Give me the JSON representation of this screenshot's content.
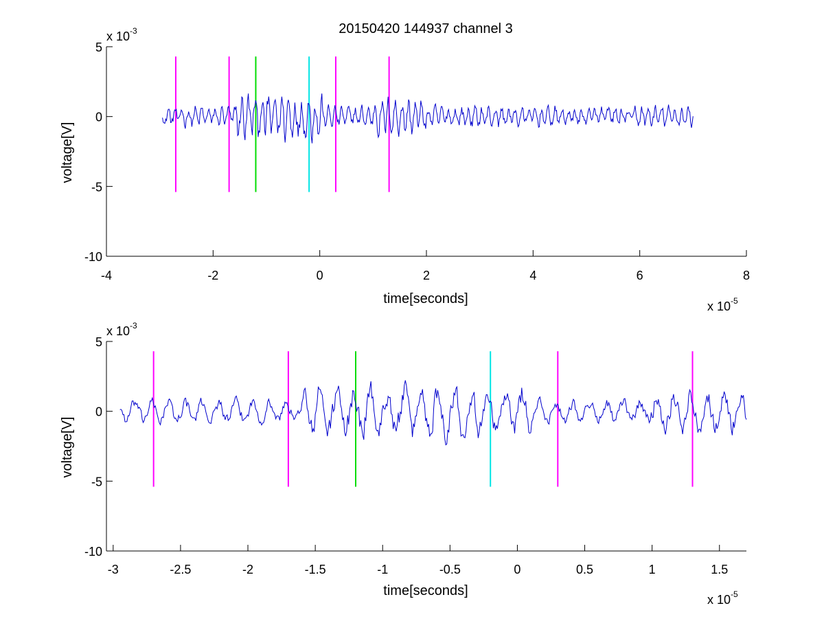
{
  "chart_data": [
    {
      "type": "line",
      "title": "20150420 144937 channel 3",
      "xlabel": "time[seconds]",
      "ylabel": "voltage[V]",
      "xlim": [
        -4e-05,
        8e-05
      ],
      "ylim": [
        -0.01,
        0.005
      ],
      "x_ticks": [
        -4e-05,
        -2e-05,
        0,
        2e-05,
        4e-05,
        6e-05,
        8e-05
      ],
      "x_tick_labels": [
        "-4",
        "-2",
        "0",
        "2",
        "4",
        "6",
        "8"
      ],
      "y_ticks": [
        -0.01,
        -0.005,
        0,
        0.005
      ],
      "y_tick_labels": [
        "-10",
        "-5",
        "0",
        "5"
      ],
      "x_exponent": {
        "base": "x 10",
        "power": "-5"
      },
      "y_exponent": {
        "base": "x 10",
        "power": "-3"
      },
      "grid": false,
      "signal": {
        "color": "#0000cc",
        "x_start": -2.95e-05,
        "x_end": 7e-05,
        "amplitude_v": 0.0022,
        "points": 650
      },
      "markers": [
        {
          "x": -2.7e-05,
          "color": "#ff00ff",
          "y_range": [
            -0.0054,
            0.0043
          ]
        },
        {
          "x": -1.7e-05,
          "color": "#ff00ff",
          "y_range": [
            -0.0054,
            0.0043
          ]
        },
        {
          "x": -1.2e-05,
          "color": "#00dd00",
          "y_range": [
            -0.0054,
            0.0043
          ]
        },
        {
          "x": -2e-06,
          "color": "#00e5e5",
          "y_range": [
            -0.0054,
            0.0043
          ]
        },
        {
          "x": 3e-06,
          "color": "#ff00ff",
          "y_range": [
            -0.0054,
            0.0043
          ]
        },
        {
          "x": 1.3e-05,
          "color": "#ff00ff",
          "y_range": [
            -0.0054,
            0.0043
          ]
        }
      ]
    },
    {
      "type": "line",
      "title": "",
      "xlabel": "time[seconds]",
      "ylabel": "voltage[V]",
      "xlim": [
        -3.05e-05,
        1.7e-05
      ],
      "ylim": [
        -0.01,
        0.005
      ],
      "x_ticks": [
        -3e-05,
        -2.5e-05,
        -2e-05,
        -1.5e-05,
        -1e-05,
        -5e-06,
        0,
        5e-06,
        1e-05,
        1.5e-05
      ],
      "x_tick_labels": [
        "-3",
        "-2.5",
        "-2",
        "-1.5",
        "-1",
        "-0.5",
        "0",
        "0.5",
        "1",
        "1.5"
      ],
      "y_ticks": [
        -0.01,
        -0.005,
        0,
        0.005
      ],
      "y_tick_labels": [
        "-10",
        "-5",
        "0",
        "5"
      ],
      "x_exponent": {
        "base": "x 10",
        "power": "-5"
      },
      "y_exponent": {
        "base": "x 10",
        "power": "-3"
      },
      "grid": false,
      "signal": {
        "color": "#0000cc",
        "x_start": -2.95e-05,
        "x_end": 1.7e-05,
        "amplitude_v": 0.0022,
        "points": 620
      },
      "markers": [
        {
          "x": -2.7e-05,
          "color": "#ff00ff",
          "y_range": [
            -0.0054,
            0.0043
          ]
        },
        {
          "x": -1.7e-05,
          "color": "#ff00ff",
          "y_range": [
            -0.0054,
            0.0043
          ]
        },
        {
          "x": -1.2e-05,
          "color": "#00dd00",
          "y_range": [
            -0.0054,
            0.0043
          ]
        },
        {
          "x": -2e-06,
          "color": "#00e5e5",
          "y_range": [
            -0.0054,
            0.0043
          ]
        },
        {
          "x": 3e-06,
          "color": "#ff00ff",
          "y_range": [
            -0.0054,
            0.0043
          ]
        },
        {
          "x": 1.3e-05,
          "color": "#ff00ff",
          "y_range": [
            -0.0054,
            0.0043
          ]
        }
      ]
    }
  ]
}
